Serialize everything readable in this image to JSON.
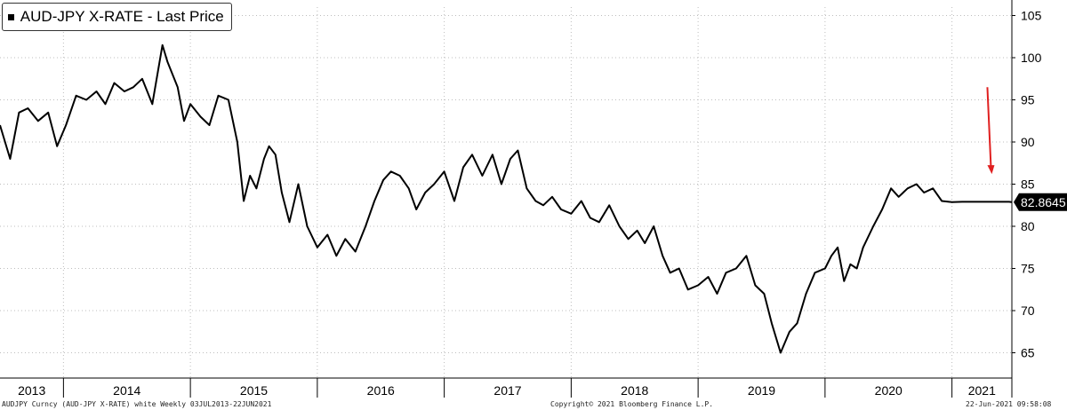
{
  "legend": {
    "label": "AUD-JPY X-RATE - Last Price"
  },
  "last_price_label": "82.8645",
  "footer": {
    "left": "AUDJPY Curncy (AUD-JPY X-RATE) white  Weekly 03JUL2013-22JUN2021",
    "center": "Copyright© 2021 Bloomberg Finance L.P.",
    "right": "22-Jun-2021 09:58:08"
  },
  "colors": {
    "line": "#000000",
    "arrow": "#e02020",
    "grid": "#bdbdbd"
  },
  "chart_data": {
    "type": "line",
    "title": "",
    "xlabel": "",
    "ylabel": "",
    "ylim": [
      62,
      106
    ],
    "y_ticks": [
      65,
      70,
      75,
      80,
      85,
      90,
      95,
      100,
      105
    ],
    "x_tick_labels": [
      "2013",
      "2014",
      "2015",
      "2016",
      "2017",
      "2018",
      "2019",
      "2020",
      "2021"
    ],
    "grid": true,
    "legend_position": "top-left",
    "last_value": 82.8645,
    "annotation": {
      "type": "arrow",
      "color": "#e02020",
      "x": 2021.3,
      "from_y": 96.5,
      "to_y": 86.2
    },
    "series": [
      {
        "name": "AUD-JPY X-RATE - Last Price",
        "x": [
          2013.5,
          2013.58,
          2013.65,
          2013.72,
          2013.8,
          2013.88,
          2013.95,
          2014.02,
          2014.1,
          2014.18,
          2014.26,
          2014.33,
          2014.4,
          2014.48,
          2014.55,
          2014.62,
          2014.7,
          2014.78,
          2014.82,
          2014.86,
          2014.9,
          2014.95,
          2015.0,
          2015.08,
          2015.15,
          2015.22,
          2015.3,
          2015.37,
          2015.42,
          2015.47,
          2015.52,
          2015.58,
          2015.62,
          2015.67,
          2015.72,
          2015.78,
          2015.85,
          2015.92,
          2016.0,
          2016.08,
          2016.15,
          2016.22,
          2016.3,
          2016.38,
          2016.45,
          2016.52,
          2016.58,
          2016.65,
          2016.72,
          2016.78,
          2016.85,
          2016.92,
          2017.0,
          2017.08,
          2017.15,
          2017.22,
          2017.3,
          2017.38,
          2017.45,
          2017.52,
          2017.58,
          2017.65,
          2017.72,
          2017.78,
          2017.85,
          2017.92,
          2018.0,
          2018.08,
          2018.15,
          2018.22,
          2018.3,
          2018.38,
          2018.45,
          2018.52,
          2018.58,
          2018.65,
          2018.72,
          2018.78,
          2018.85,
          2018.92,
          2019.0,
          2019.08,
          2019.15,
          2019.22,
          2019.3,
          2019.38,
          2019.45,
          2019.52,
          2019.58,
          2019.65,
          2019.72,
          2019.78,
          2019.85,
          2019.92,
          2020.0,
          2020.05,
          2020.1,
          2020.15,
          2020.2,
          2020.25,
          2020.3,
          2020.38,
          2020.45,
          2020.52,
          2020.58,
          2020.65,
          2020.72,
          2020.78,
          2020.85,
          2020.92,
          2021.0,
          2021.08,
          2021.15,
          2021.22,
          2021.3,
          2021.38,
          2021.45,
          2021.47
        ],
        "values": [
          92.0,
          88.0,
          93.5,
          94.0,
          92.5,
          93.5,
          89.5,
          92.0,
          95.5,
          95.0,
          96.0,
          94.5,
          97.0,
          96.0,
          96.5,
          97.5,
          94.5,
          101.5,
          99.5,
          98.0,
          96.5,
          92.5,
          94.5,
          93.0,
          92.0,
          95.5,
          95.0,
          90.0,
          83.0,
          86.0,
          84.5,
          88.0,
          89.5,
          88.5,
          84.0,
          80.5,
          85.0,
          80.0,
          77.5,
          79.0,
          76.5,
          78.5,
          77.0,
          80.0,
          83.0,
          85.5,
          86.5,
          86.0,
          84.5,
          82.0,
          84.0,
          85.0,
          86.5,
          83.0,
          87.0,
          88.5,
          86.0,
          88.5,
          85.0,
          88.0,
          89.0,
          84.5,
          83.0,
          82.5,
          83.5,
          82.0,
          81.5,
          83.0,
          81.0,
          80.5,
          82.5,
          80.0,
          78.5,
          79.5,
          78.0,
          80.0,
          76.5,
          74.5,
          75.0,
          72.5,
          73.0,
          74.0,
          72.0,
          74.5,
          75.0,
          76.5,
          73.0,
          72.0,
          68.5,
          65.0,
          67.5,
          68.5,
          72.0,
          74.5,
          75.0,
          76.5,
          77.5,
          73.5,
          75.5,
          75.0,
          77.5,
          80.0,
          82.0,
          84.5,
          83.5,
          84.5,
          85.0,
          84.0,
          84.5,
          83.0,
          82.86,
          82.9,
          82.9,
          82.9,
          82.9,
          82.9,
          82.9,
          82.8645
        ]
      }
    ]
  }
}
